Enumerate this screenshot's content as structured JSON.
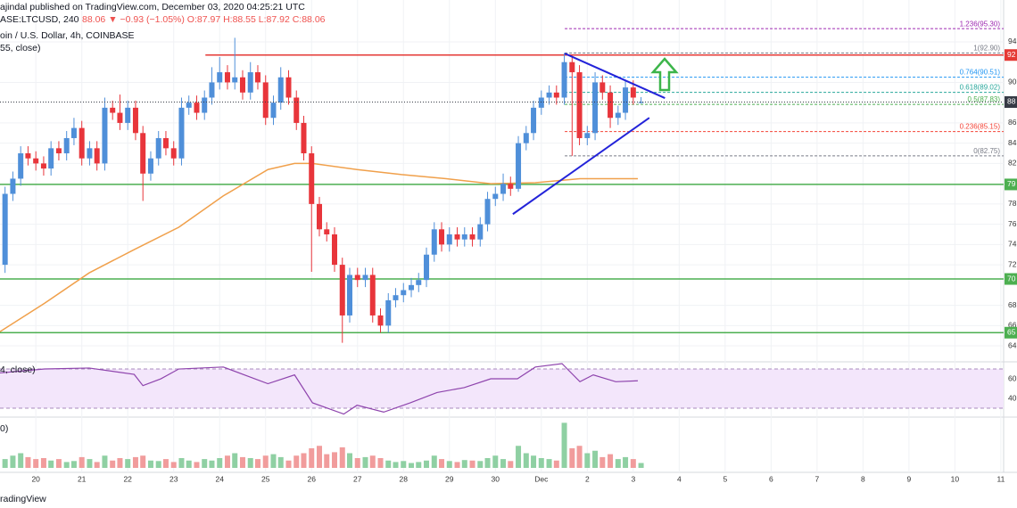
{
  "chart_data": {
    "type": "candlestick",
    "title": "ajindal published on TradingView.com, December 03, 2020 04:25:21 UTC",
    "subtitle": "ASE:LTCUSD, 240",
    "quote": "88.06 ▼ −0.93 (−1.05%) O:87.97 H:88.55 L:87.92 C:88.06",
    "symbol": "oin / U.S. Dollar, 4h, COINBASE",
    "ma_label": "55, close)",
    "rsi_label": "4, close)",
    "volume_label": "0)",
    "footer": "radingView",
    "up_color": "#4f8fd9",
    "down_color": "#e8353b",
    "x": [
      19.33,
      19.5,
      19.67,
      19.83,
      20,
      20.17,
      20.33,
      20.5,
      20.67,
      20.83,
      21,
      21.17,
      21.33,
      21.5,
      21.67,
      21.83,
      22,
      22.17,
      22.33,
      22.5,
      22.67,
      22.83,
      23,
      23.17,
      23.33,
      23.5,
      23.67,
      23.83,
      24,
      24.17,
      24.33,
      24.5,
      24.67,
      24.83,
      25,
      25.17,
      25.33,
      25.5,
      25.67,
      25.83,
      26,
      26.17,
      26.33,
      26.5,
      26.67,
      26.83,
      27,
      27.17,
      27.33,
      27.5,
      27.67,
      27.83,
      28,
      28.17,
      28.33,
      28.5,
      28.67,
      28.83,
      29,
      29.17,
      29.33,
      29.5,
      29.67,
      29.83,
      30,
      30.17,
      30.33,
      30.5,
      30.67,
      30.83,
      31,
      31.17,
      31.33,
      31.5,
      31.67,
      31.83,
      32,
      32.17,
      32.33,
      32.5,
      32.67,
      32.83,
      33,
      33.17
    ],
    "open": [
      72,
      79,
      80.5,
      83,
      82.5,
      82,
      81.5,
      83.5,
      83,
      84.5,
      85.5,
      82.5,
      83.5,
      82,
      87.5,
      87,
      86,
      87.5,
      85,
      81,
      82.5,
      84.5,
      83.5,
      82.5,
      87.5,
      88,
      87,
      88.5,
      90,
      91,
      90,
      90.5,
      89,
      91,
      90,
      86.5,
      88,
      90.5,
      88.5,
      86,
      83,
      78,
      75.5,
      75,
      72,
      67,
      71,
      70.5,
      71,
      67,
      66,
      68.5,
      69,
      69.5,
      70,
      70.5,
      73,
      75.5,
      74,
      75,
      74.5,
      75,
      74.5,
      76,
      78.5,
      79,
      80,
      79.5,
      84,
      85,
      87.5,
      88.5,
      89,
      88.5,
      92,
      91,
      84.5,
      85,
      90,
      89,
      86.5,
      87,
      89.5,
      87.97
    ],
    "high": [
      79.7,
      81.2,
      83.7,
      83.7,
      83.2,
      82.7,
      84.2,
      84.2,
      85.2,
      86.5,
      86.2,
      84.2,
      84.2,
      88.5,
      88.2,
      88.8,
      88.2,
      88.2,
      85.7,
      83.2,
      85.2,
      85.2,
      84.2,
      88.5,
      88.7,
      88.7,
      89.2,
      91.5,
      92.5,
      91.7,
      94.4,
      91.2,
      92,
      91.7,
      90.7,
      88.7,
      91.5,
      91.2,
      89.2,
      86.7,
      83.7,
      78.7,
      76.2,
      75.7,
      72.7,
      71.7,
      71.7,
      71.7,
      71.7,
      67.7,
      69.2,
      69.7,
      70.2,
      70.7,
      71.2,
      73.7,
      76.2,
      76.2,
      75.7,
      75.7,
      75.7,
      75.7,
      76.7,
      79.2,
      79.7,
      81,
      80.7,
      84.7,
      85.7,
      88.2,
      89.2,
      89.7,
      89.7,
      92.9,
      92.5,
      91.7,
      85.7,
      91,
      90.7,
      89.7,
      87.7,
      90.2,
      90.2,
      88.55
    ],
    "low": [
      71.2,
      78.3,
      79.8,
      81.8,
      81.3,
      80.8,
      80.8,
      82.3,
      82.3,
      83.8,
      81.8,
      81.8,
      81.3,
      81.3,
      86.3,
      85.3,
      85.3,
      84.3,
      78.3,
      80.3,
      81.8,
      82.8,
      81.8,
      81.8,
      86.8,
      86.3,
      86.3,
      87.8,
      89.3,
      89.3,
      89.3,
      88.3,
      88.3,
      89.3,
      85.8,
      85.8,
      87.3,
      87.8,
      85.3,
      82.3,
      71.3,
      74.8,
      74.3,
      71.3,
      64.3,
      66.3,
      69.8,
      69.8,
      66.3,
      65.3,
      65.3,
      67.8,
      68.3,
      68.8,
      69.3,
      69.8,
      72.3,
      73.3,
      73.3,
      73.8,
      73.8,
      73.8,
      73.8,
      75.3,
      77.8,
      78.3,
      78.8,
      79.2,
      83.3,
      84.3,
      86.8,
      87.8,
      87.8,
      87.8,
      82.75,
      83.8,
      83.8,
      84.3,
      88.3,
      85.5,
      85.8,
      86.3,
      87.8,
      87.92
    ],
    "close": [
      79,
      80.5,
      83,
      82.5,
      82,
      81.5,
      83.5,
      83,
      84.5,
      85.5,
      82.5,
      83.5,
      82,
      87.5,
      87,
      86,
      87.5,
      85,
      81,
      82.5,
      84.5,
      83.5,
      82.5,
      87.5,
      88,
      87,
      88.5,
      90,
      91,
      90,
      90.5,
      89,
      91,
      90,
      86.5,
      88,
      90.5,
      88.5,
      86,
      83,
      78,
      75.5,
      75,
      72,
      67,
      71,
      70.5,
      71,
      67,
      66,
      68.5,
      69,
      69.5,
      70,
      70.5,
      73,
      75.5,
      74,
      75,
      74.5,
      75,
      74.5,
      76,
      78.5,
      79,
      80,
      79.5,
      84,
      85,
      87.5,
      88.5,
      89,
      88.5,
      92,
      91,
      84.5,
      85,
      90,
      89,
      86.5,
      87,
      89.5,
      88.5,
      88.06
    ],
    "price_label": "88",
    "xlim": [
      19.22,
      41.06
    ],
    "xticks": [
      20,
      21,
      22,
      23,
      24,
      25,
      26,
      27,
      28,
      29,
      30,
      {
        "value": 31,
        "label": "Dec"
      },
      {
        "value": 32,
        "label": "2"
      },
      {
        "value": 33,
        "label": "3"
      },
      {
        "value": 34,
        "label": "4"
      },
      {
        "value": 35,
        "label": "5"
      },
      {
        "value": 36,
        "label": "6"
      },
      {
        "value": 37,
        "label": "7"
      },
      {
        "value": 38,
        "label": "8"
      },
      {
        "value": 39,
        "label": "9"
      },
      {
        "value": 40,
        "label": "10"
      },
      {
        "value": 41,
        "label": "11"
      }
    ],
    "ylim": [
      62.51,
      98.13
    ],
    "yticks": [
      64,
      66,
      68,
      72,
      74,
      76,
      78,
      82,
      84,
      86,
      90,
      94
    ],
    "grid": true,
    "ma": {
      "color": "#f0a04b",
      "x": [
        19.22,
        20.19,
        21.16,
        22.14,
        23.11,
        24.08,
        25.05,
        25.63,
        26.02,
        26.99,
        27.96,
        28.93,
        29.9,
        30.87,
        31.84,
        33.1
      ],
      "values": [
        65.4,
        68.2,
        71.2,
        73.5,
        75.7,
        78.8,
        81.4,
        82,
        82,
        81.4,
        80.9,
        80.5,
        80,
        80.1,
        80.5,
        80.5
      ]
    },
    "levels": [
      {
        "value": 92.7,
        "label": "92",
        "color": "#e53935",
        "x_start": 23.69
      },
      {
        "value": 79.93,
        "label": "79",
        "color": "#4caf50",
        "x_start": 19.22
      },
      {
        "value": 70.6,
        "label": "70",
        "color": "#4caf50",
        "x_start": 19.22
      },
      {
        "value": 65.3,
        "label": "65",
        "color": "#4caf50",
        "x_start": 19.22
      }
    ],
    "fib": {
      "x_start": 31.51,
      "levels": [
        {
          "value": 95.3,
          "label": "1.236(95.30)",
          "color": "#9c27b0"
        },
        {
          "value": 92.9,
          "label": "1(92.90)",
          "color": "#787b86"
        },
        {
          "value": 90.51,
          "label": "0.764(90.51)",
          "color": "#2196f3"
        },
        {
          "value": 89.02,
          "label": "0.618(89.02)",
          "color": "#26a69a"
        },
        {
          "value": 87.83,
          "label": "0.5(87.83)",
          "color": "#4caf50"
        },
        {
          "value": 85.15,
          "label": "0.236(85.15)",
          "color": "#f44336"
        },
        {
          "value": 82.75,
          "label": "0(82.75)",
          "color": "#787b86"
        }
      ]
    },
    "trendlines": [
      {
        "color": "#2323d9",
        "x": [
          31.51,
          33.69
        ],
        "values": [
          92.85,
          88.45
        ]
      },
      {
        "color": "#2323d9",
        "x": [
          30.38,
          33.35
        ],
        "values": [
          77,
          86.5
        ]
      }
    ],
    "rsi": {
      "color": "#8e44ad",
      "band": [
        30,
        70
      ],
      "ylim": [
        21.8,
        76.4
      ],
      "yticks": [
        40,
        60
      ],
      "x": [
        19.22,
        20.19,
        21.16,
        22.14,
        22.33,
        22.72,
        23.11,
        24.08,
        25.05,
        25.63,
        26.02,
        26.7,
        26.99,
        27.57,
        28.15,
        28.73,
        29.32,
        29.9,
        30.48,
        30.87,
        31.45,
        31.84,
        32.13,
        32.62,
        33.1
      ],
      "values": [
        66,
        70,
        71,
        64.5,
        53,
        60,
        70,
        72,
        55,
        64,
        35.5,
        24,
        33,
        26,
        35.5,
        46,
        51,
        60,
        60,
        72,
        75.5,
        57,
        64,
        57,
        58
      ]
    },
    "volume": {
      "ylim": [
        0,
        100
      ],
      "up_color": "#8fd0a3",
      "down_color": "#f19c9c",
      "values": [
        18,
        25,
        30,
        22,
        18,
        20,
        15,
        18,
        12,
        14,
        22,
        18,
        12,
        25,
        15,
        20,
        18,
        22,
        25,
        15,
        14,
        18,
        12,
        20,
        15,
        12,
        18,
        15,
        20,
        25,
        30,
        22,
        20,
        18,
        25,
        28,
        22,
        15,
        25,
        30,
        40,
        45,
        28,
        32,
        42,
        30,
        20,
        22,
        25,
        20,
        15,
        12,
        14,
        10,
        12,
        15,
        25,
        18,
        14,
        12,
        16,
        15,
        14,
        20,
        25,
        18,
        14,
        45,
        30,
        25,
        20,
        18,
        15,
        92,
        40,
        45,
        30,
        35,
        22,
        28,
        18,
        22,
        18,
        10
      ]
    }
  }
}
